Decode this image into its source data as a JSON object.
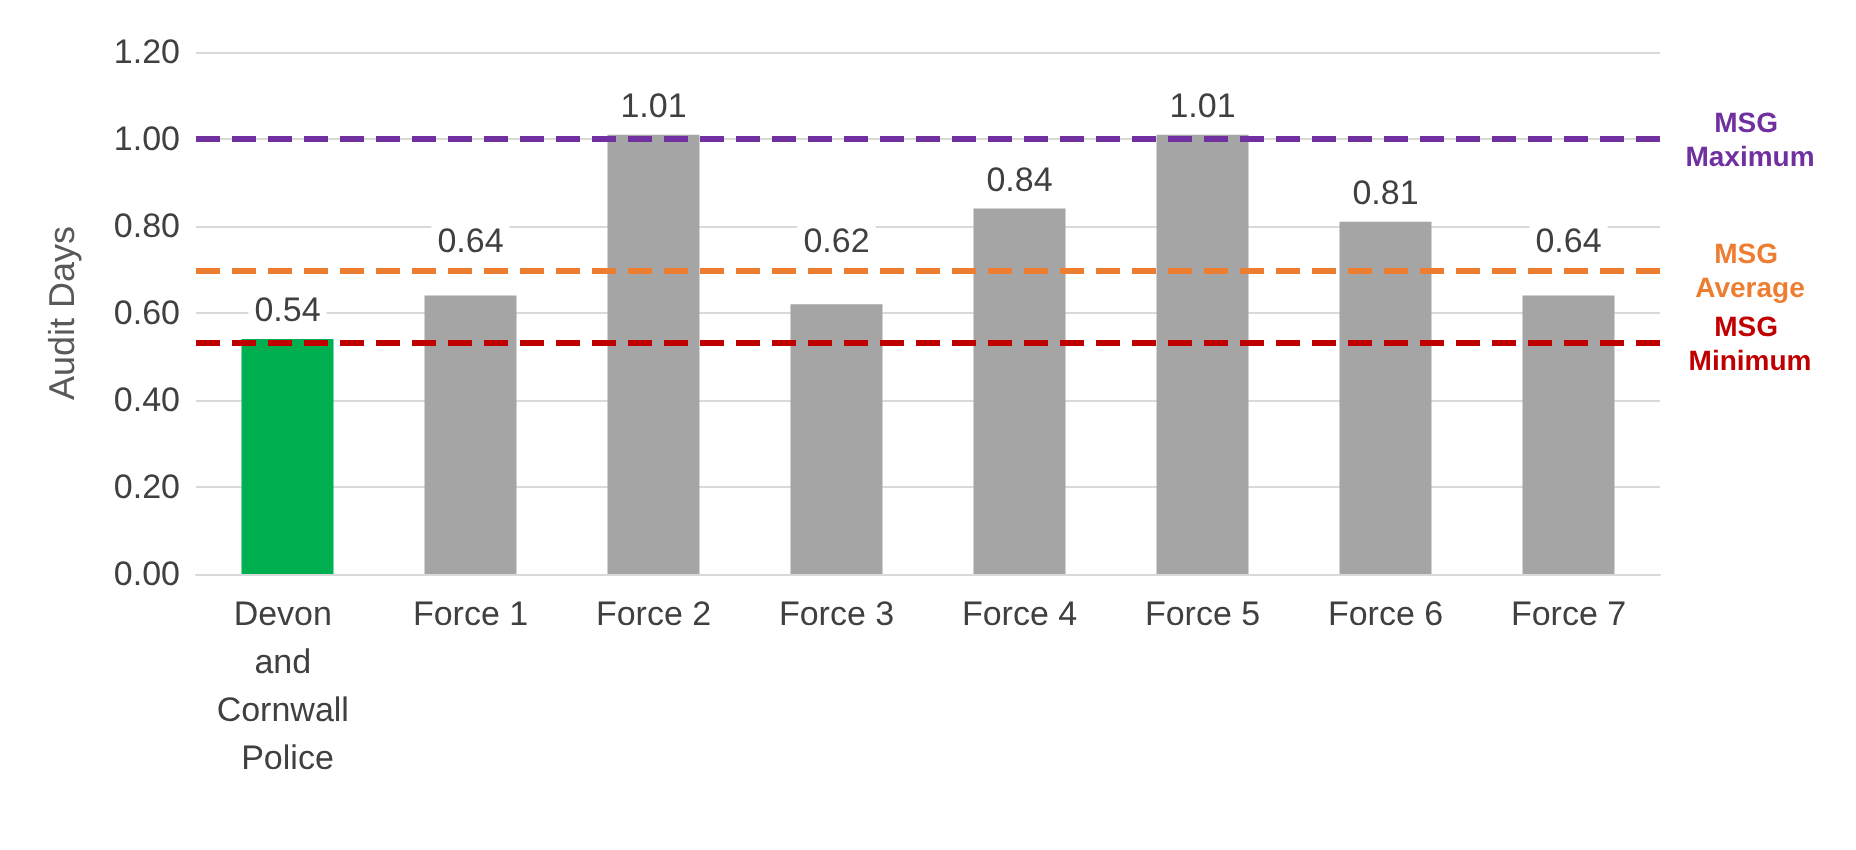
{
  "chart_data": {
    "type": "bar",
    "ylabel": "Audit Days",
    "categories": [
      "Devon and Cornwall Police",
      "Force 1",
      "Force 2",
      "Force 3",
      "Force 4",
      "Force 5",
      "Force 6",
      "Force 7"
    ],
    "values": [
      0.54,
      0.64,
      1.01,
      0.62,
      0.84,
      1.01,
      0.81,
      0.64
    ],
    "colors": [
      "#00b050",
      "#a5a5a5",
      "#a5a5a5",
      "#a5a5a5",
      "#a5a5a5",
      "#a5a5a5",
      "#a5a5a5",
      "#a5a5a5"
    ],
    "ylim": [
      0,
      1.2
    ],
    "yticks": [
      {
        "value": 0,
        "label": "0.00"
      },
      {
        "value": 0.2,
        "label": "0.20"
      },
      {
        "value": 0.4,
        "label": "0.40"
      },
      {
        "value": 0.6,
        "label": "0.60"
      },
      {
        "value": 0.8,
        "label": "0.80"
      },
      {
        "value": 1,
        "label": "1.00"
      },
      {
        "value": 1.2,
        "label": "1.20"
      }
    ],
    "grid": "y",
    "data_labels": true,
    "ref_lines": [
      {
        "axis": "y",
        "value": 1.0,
        "label": "MSG Maximum",
        "color": "#7030a0",
        "line_style": "dashed"
      },
      {
        "axis": "y",
        "value": 0.7,
        "label": "MSG Average",
        "color": "#ed7d31",
        "line_style": "dashed"
      },
      {
        "axis": "y",
        "value": 0.53,
        "label": "MSG Minimum",
        "color": "#c00000",
        "line_style": "dashed"
      }
    ]
  }
}
